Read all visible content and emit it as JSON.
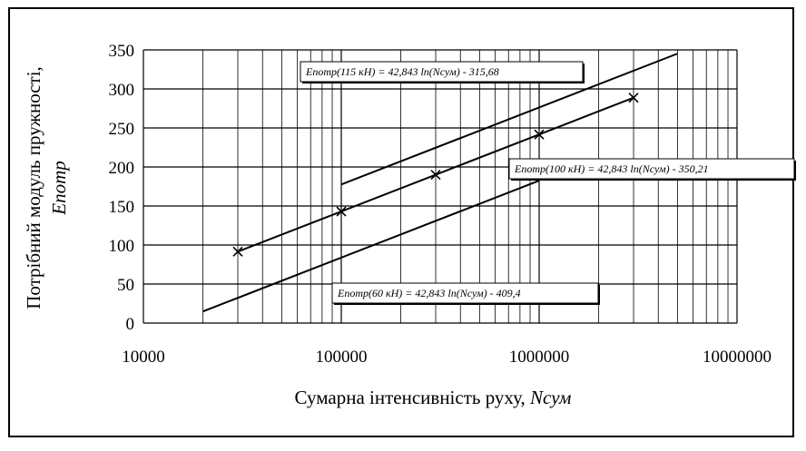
{
  "chart_data": {
    "type": "line",
    "title": "",
    "xscale": "log",
    "xlim": [
      10000,
      10000000
    ],
    "ylim": [
      0,
      350
    ],
    "xticks": [
      "10000",
      "100000",
      "1000000",
      "10000000"
    ],
    "yticks": [
      "0",
      "50",
      "100",
      "150",
      "200",
      "250",
      "300",
      "350"
    ],
    "xlabel": "Сумарна інтенсивність руху, ",
    "xlabel_var": "Nсум",
    "ylabel": "Потрібний модуль пружності,",
    "ylabel_var": "Епотр",
    "grid": true,
    "series": [
      {
        "label": "Епотр(115 кН) = 42,843 ln(Nсум) - 315,68",
        "x": [
          100000,
          5000000
        ],
        "y": [
          177.6,
          345.2
        ],
        "markers": false
      },
      {
        "label": "Епотр(100 кН) = 42,843 ln(Nсум) - 350,21",
        "x": [
          30000,
          100000,
          300000,
          1000000,
          3000000
        ],
        "y": [
          91.5,
          143.0,
          190.1,
          241.7,
          288.8
        ],
        "markers": true
      },
      {
        "label": "Епотр(60 кН) = 42,843 ln(Nсум) - 409,4",
        "x": [
          20000,
          1000000
        ],
        "y": [
          14.9,
          182.5
        ],
        "markers": false
      }
    ]
  }
}
